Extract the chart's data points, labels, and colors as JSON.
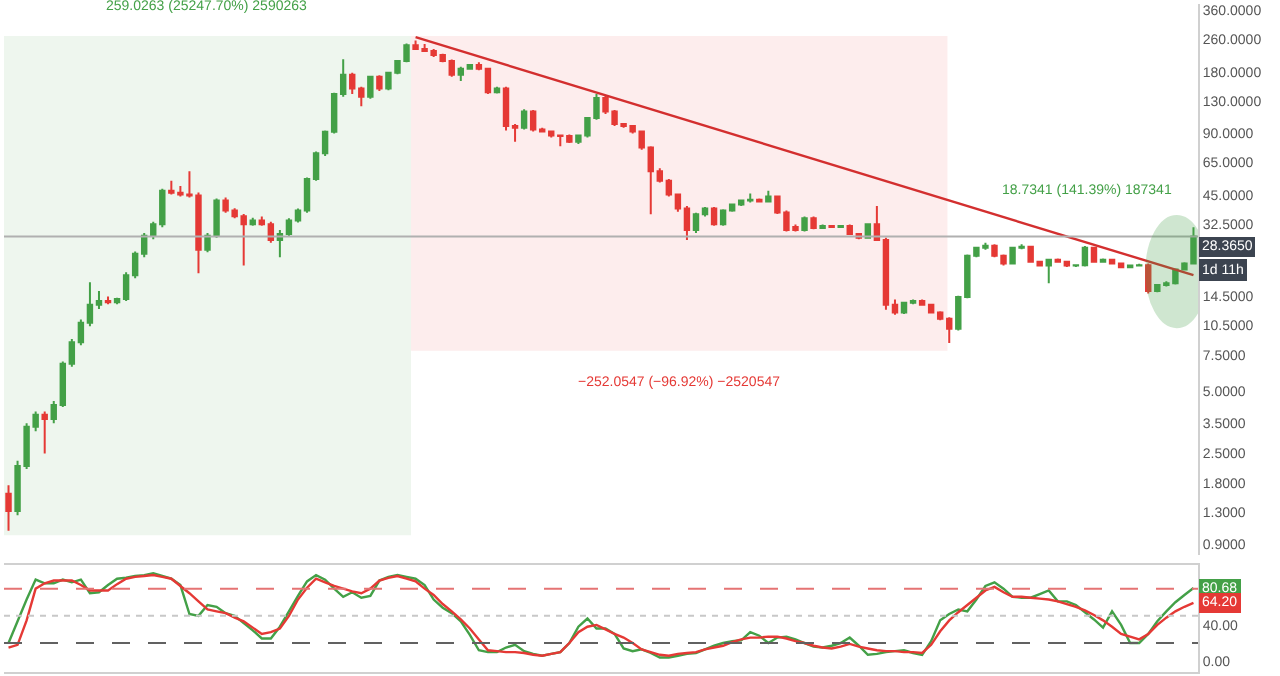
{
  "chart_data": [
    {
      "type": "candlestick",
      "categories": [
        null,
        null,
        null,
        null,
        null,
        null,
        null,
        null,
        null,
        null,
        null,
        null,
        null,
        null,
        null,
        null,
        null,
        null,
        null,
        null,
        null,
        null,
        null,
        null,
        null,
        null,
        null,
        null,
        null,
        null,
        null,
        null,
        null,
        null,
        null,
        null,
        null,
        null,
        null,
        null,
        null,
        null,
        null,
        null,
        null,
        null,
        null,
        null,
        null,
        null,
        null,
        null,
        null,
        null,
        null,
        null,
        null,
        null,
        null,
        null,
        null,
        null,
        null,
        null,
        null,
        null,
        null,
        null,
        null,
        null,
        null,
        null,
        null,
        null,
        null,
        null,
        null,
        null,
        null,
        null,
        null,
        null,
        null,
        null,
        null,
        null,
        null,
        null,
        null,
        null,
        null,
        null,
        null,
        null,
        null,
        null,
        null,
        null,
        null,
        null,
        null,
        null,
        null,
        null,
        null,
        null,
        null,
        null,
        null,
        null,
        null,
        null,
        null,
        null,
        null,
        null,
        null,
        null,
        null,
        null,
        null,
        null,
        null,
        null,
        null,
        null,
        null,
        null,
        null,
        null,
        null,
        null
      ],
      "ohlc": [
        [
          1.59,
          1.75,
          1.05,
          1.31
        ],
        [
          1.31,
          2.3,
          1.25,
          2.17
        ],
        [
          2.17,
          3.5,
          2.1,
          3.37
        ],
        [
          3.37,
          4.0,
          3.2,
          3.85
        ],
        [
          3.85,
          4.0,
          2.5,
          3.68
        ],
        [
          3.68,
          4.5,
          3.5,
          4.3
        ],
        [
          4.3,
          7.0,
          4.2,
          6.82
        ],
        [
          6.82,
          9.0,
          6.6,
          8.69
        ],
        [
          8.69,
          11.2,
          8.4,
          10.8
        ],
        [
          10.8,
          17,
          10.4,
          13.2
        ],
        [
          13.2,
          15.4,
          12.6,
          13.8
        ],
        [
          13.8,
          14.5,
          13.3,
          13.6
        ],
        [
          13.6,
          14.3,
          13.3,
          14.1
        ],
        [
          14.1,
          19,
          13.8,
          18.4
        ],
        [
          18.4,
          24,
          17.8,
          23.4
        ],
        [
          23.4,
          29.5,
          22.5,
          28.6
        ],
        [
          28.6,
          33.5,
          27.5,
          32.6
        ],
        [
          32.6,
          48.5,
          31.5,
          47.4
        ],
        [
          47.4,
          53,
          45.5,
          46.3
        ],
        [
          46.3,
          50,
          44.5,
          45.4
        ],
        [
          45.4,
          59,
          44,
          45
        ],
        [
          45,
          46.5,
          18.8,
          24.5
        ],
        [
          24.5,
          29.5,
          23.8,
          28.6
        ],
        [
          28.6,
          43.5,
          28,
          42.5
        ],
        [
          42.5,
          44,
          37,
          38
        ],
        [
          38,
          39,
          34.8,
          35.6
        ],
        [
          35.6,
          36.5,
          20.5,
          32.6
        ],
        [
          32.6,
          35,
          32,
          34
        ],
        [
          34,
          35.5,
          32,
          32.6
        ],
        [
          32.6,
          33.5,
          26.5,
          27.3
        ],
        [
          27.3,
          30.5,
          22.5,
          29.2
        ],
        [
          29.2,
          34.8,
          28.5,
          34
        ],
        [
          34,
          38.8,
          33.2,
          38
        ],
        [
          38,
          55,
          37,
          54.1
        ],
        [
          54.1,
          73.5,
          53,
          72.1
        ],
        [
          72.1,
          93,
          70,
          91.8
        ],
        [
          91.8,
          142,
          90,
          140
        ],
        [
          140,
          207,
          136,
          174
        ],
        [
          174,
          178,
          140,
          149
        ],
        [
          149,
          152,
          122,
          136
        ],
        [
          136,
          172,
          133,
          170
        ],
        [
          170,
          173,
          145,
          149
        ],
        [
          149,
          180,
          146,
          178
        ],
        [
          178,
          205,
          175,
          203
        ],
        [
          203,
          247,
          200,
          242
        ],
        [
          242,
          255,
          230,
          232
        ],
        [
          232,
          245,
          225,
          227
        ],
        [
          227,
          232,
          212,
          217
        ],
        [
          217,
          220,
          200,
          203
        ],
        [
          203,
          206,
          170,
          174
        ],
        [
          174,
          190,
          162,
          186
        ],
        [
          186,
          196,
          184,
          194
        ],
        [
          194,
          200,
          183,
          186
        ],
        [
          186,
          188,
          140,
          143
        ],
        [
          143,
          152,
          141,
          149
        ],
        [
          149,
          152,
          93,
          98
        ],
        [
          98,
          100,
          82,
          96
        ],
        [
          96,
          118,
          94,
          115
        ],
        [
          115,
          117,
          92,
          94
        ],
        [
          94,
          96,
          91,
          92
        ],
        [
          92,
          93,
          86,
          88
        ],
        [
          88,
          89,
          78,
          87.5
        ],
        [
          87.5,
          89,
          81,
          82
        ],
        [
          82,
          89,
          80,
          88
        ],
        [
          88,
          108,
          86,
          107
        ],
        [
          107,
          140,
          105,
          134
        ],
        [
          134,
          138,
          112,
          115
        ],
        [
          115,
          117,
          98,
          100
        ],
        [
          100,
          101,
          96,
          98
        ],
        [
          98,
          99,
          90,
          92
        ],
        [
          92,
          93,
          75,
          77
        ],
        [
          77,
          78,
          36.4,
          59
        ],
        [
          59,
          61,
          52,
          53
        ],
        [
          53,
          54,
          44.5,
          45.4
        ],
        [
          45.4,
          46,
          37.5,
          38.9
        ],
        [
          38.9,
          40,
          27.3,
          30.5
        ],
        [
          30.5,
          37,
          29.5,
          36.4
        ],
        [
          36.4,
          39.5,
          35.5,
          38.9
        ],
        [
          38.9,
          39.5,
          32,
          32.6
        ],
        [
          32.6,
          38.5,
          32,
          38
        ],
        [
          38,
          41,
          37.5,
          40.6
        ],
        [
          40.6,
          43,
          40,
          42.5
        ],
        [
          42.5,
          46,
          41.5,
          42.8
        ],
        [
          42.8,
          43.5,
          41.5,
          42
        ],
        [
          42,
          47.4,
          41.5,
          44.4
        ],
        [
          44.4,
          45,
          36.5,
          37.2
        ],
        [
          37.2,
          38,
          30,
          30.5
        ],
        [
          31.6,
          32.5,
          30,
          30.5
        ],
        [
          30.5,
          35.5,
          30,
          34.8
        ],
        [
          34.8,
          35.5,
          30.8,
          31.2
        ],
        [
          31.2,
          32.5,
          31,
          31.9
        ],
        [
          31.9,
          32.3,
          31.2,
          31.6
        ],
        [
          31.6,
          32.2,
          31.2,
          31.9
        ],
        [
          31.9,
          32.5,
          29,
          29.2
        ],
        [
          29.2,
          29.5,
          27.5,
          28
        ],
        [
          28,
          32.8,
          27.8,
          32.6
        ],
        [
          32.6,
          40,
          27,
          27.3
        ],
        [
          27.3,
          28,
          12.5,
          13.2
        ],
        [
          13.2,
          14,
          11.8,
          12.1
        ],
        [
          12.1,
          13.6,
          11.9,
          13.5
        ],
        [
          13.5,
          14,
          13.3,
          13.8
        ],
        [
          13.8,
          14,
          13.1,
          13.2
        ],
        [
          13.2,
          13.3,
          12,
          12.1
        ],
        [
          12.1,
          12.3,
          11.1,
          11.3
        ],
        [
          11.3,
          11.5,
          8.6,
          10.1
        ],
        [
          10.1,
          14.6,
          9.9,
          14.4
        ],
        [
          14.4,
          23.2,
          14.2,
          22.9
        ],
        [
          22.9,
          25.3,
          22.5,
          25
        ],
        [
          25,
          26.5,
          24.5,
          25.6
        ],
        [
          25.6,
          26,
          22.5,
          22.9
        ],
        [
          22.9,
          23.2,
          20.5,
          21
        ],
        [
          21,
          25.2,
          20.8,
          25
        ],
        [
          25,
          26,
          24.6,
          25.3
        ],
        [
          25.3,
          25.5,
          21.2,
          21.4
        ],
        [
          21.4,
          21.6,
          20.3,
          20.5
        ],
        [
          20.5,
          22,
          16.8,
          21.9
        ],
        [
          21.9,
          22.2,
          21.2,
          21.4
        ],
        [
          21.4,
          21.6,
          20.2,
          20.5
        ],
        [
          20.5,
          20.8,
          20.2,
          20.6
        ],
        [
          20.6,
          25.5,
          20.3,
          25
        ],
        [
          25,
          25.3,
          21.2,
          21.4
        ],
        [
          21.4,
          22.2,
          21.2,
          21.9
        ],
        [
          21.9,
          22,
          21,
          21
        ],
        [
          21,
          21.2,
          19.9,
          20.1
        ],
        [
          20.1,
          20.7,
          19.9,
          20.5
        ],
        [
          20.5,
          20.9,
          20.3,
          20.6
        ],
        [
          20.6,
          21,
          15,
          15.4
        ],
        [
          15.4,
          16.6,
          15.2,
          16.5
        ],
        [
          16.5,
          17.2,
          16.2,
          16.8
        ],
        [
          16.8,
          19.8,
          16.6,
          19.6
        ],
        [
          19.6,
          21.3,
          19.4,
          21
        ],
        [
          21,
          31.5,
          20.8,
          28.365
        ]
      ],
      "colors": [
        "#e53935",
        "#43a047",
        "#43a047",
        "#43a047",
        "#e53935",
        "#43a047",
        "#43a047",
        "#43a047",
        "#43a047",
        "#43a047",
        "#43a047",
        "#e53935",
        "#43a047",
        "#43a047",
        "#43a047",
        "#43a047",
        "#43a047",
        "#43a047",
        "#e53935",
        "#e53935",
        "#e53935",
        "#e53935",
        "#43a047",
        "#43a047",
        "#e53935",
        "#e53935",
        "#e53935",
        "#43a047",
        "#e53935",
        "#e53935",
        "#43a047",
        "#43a047",
        "#43a047",
        "#43a047",
        "#43a047",
        "#43a047",
        "#43a047",
        "#43a047",
        "#e53935",
        "#e53935",
        "#43a047",
        "#e53935",
        "#43a047",
        "#43a047",
        "#43a047",
        "#e53935",
        "#e53935",
        "#e53935",
        "#e53935",
        "#e53935",
        "#43a047",
        "#43a047",
        "#e53935",
        "#e53935",
        "#43a047",
        "#e53935",
        "#e53935",
        "#43a047",
        "#e53935",
        "#e53935",
        "#e53935",
        "#e53935",
        "#e53935",
        "#43a047",
        "#43a047",
        "#43a047",
        "#e53935",
        "#e53935",
        "#e53935",
        "#e53935",
        "#e53935",
        "#e53935",
        "#e53935",
        "#e53935",
        "#e53935",
        "#e53935",
        "#43a047",
        "#43a047",
        "#e53935",
        "#43a047",
        "#43a047",
        "#43a047",
        "#43a047",
        "#e53935",
        "#43a047",
        "#e53935",
        "#e53935",
        "#e53935",
        "#43a047",
        "#e53935",
        "#43a047",
        "#e53935",
        "#43a047",
        "#e53935",
        "#e53935",
        "#43a047",
        "#e53935",
        "#e53935",
        "#e53935",
        "#43a047",
        "#43a047",
        "#e53935",
        "#e53935",
        "#e53935",
        "#e53935",
        "#43a047",
        "#43a047",
        "#43a047",
        "#43a047",
        "#e53935",
        "#e53935",
        "#43a047",
        "#43a047",
        "#e53935",
        "#e53935",
        "#43a047",
        "#e53935",
        "#e53935",
        "#43a047",
        "#43a047",
        "#e53935",
        "#43a047",
        "#e53935",
        "#e53935",
        "#43a047",
        "#43a047",
        "#e53935",
        "#43a047",
        "#43a047",
        "#43a047",
        "#43a047",
        "#43a047"
      ],
      "series": [
        {
          "type": "line",
          "color": "#d32f2f",
          "values": [
            null,
            null,
            null,
            null,
            null,
            null,
            null,
            null,
            null,
            null,
            null,
            null,
            null,
            null,
            null,
            null,
            null,
            null,
            null,
            null,
            null,
            null,
            null,
            null,
            null,
            null,
            null,
            null,
            null,
            null,
            null,
            null,
            null,
            null,
            null,
            null,
            null,
            null,
            null,
            null,
            null,
            null,
            null,
            null,
            null,
            265,
            null,
            null,
            null,
            null,
            null,
            null,
            null,
            null,
            null,
            null,
            null,
            null,
            null,
            null,
            null,
            null,
            null,
            null,
            null,
            null,
            null,
            null,
            null,
            null,
            null,
            null,
            null,
            null,
            null,
            null,
            null,
            null,
            null,
            null,
            null,
            null,
            null,
            null,
            null,
            null,
            null,
            null,
            null,
            null,
            null,
            null,
            null,
            null,
            null,
            null,
            null,
            null,
            null,
            null,
            null,
            null,
            null,
            null,
            null,
            null,
            null,
            null,
            null,
            null,
            null,
            null,
            null,
            null,
            null,
            null,
            null,
            null,
            null,
            null,
            null,
            null,
            null,
            null,
            null,
            null,
            null,
            null,
            null,
            null,
            null,
            18.4
          ]
        }
      ],
      "ylim": [
        0.8,
        384
      ],
      "yticks": [
        {
          "value": 360,
          "label": "360.0000"
        },
        {
          "value": 260,
          "label": "260.0000"
        },
        {
          "value": 180,
          "label": "180.0000"
        },
        {
          "value": 130,
          "label": "130.0000"
        },
        {
          "value": 90,
          "label": "90.0000"
        },
        {
          "value": 65,
          "label": "65.0000"
        },
        {
          "value": 45,
          "label": "45.0000"
        },
        {
          "value": 32.5,
          "label": "32.5000"
        },
        {
          "value": 14.5,
          "label": "14.5000"
        },
        {
          "value": 10.5,
          "label": "10.5000"
        },
        {
          "value": 7.5,
          "label": "7.5000"
        },
        {
          "value": 5,
          "label": "5.0000"
        },
        {
          "value": 3.5,
          "label": "3.5000"
        },
        {
          "value": 2.5,
          "label": "2.5000"
        },
        {
          "value": 1.8,
          "label": "1.8000"
        },
        {
          "value": 1.3,
          "label": "1.3000"
        },
        {
          "value": 0.9,
          "label": "0.9000"
        }
      ],
      "log": "y",
      "grid": false,
      "tick_labels": "y",
      "ref_lines": [
        {
          "axis": "y",
          "value": 28.365,
          "label": "28.3650",
          "color": "#b0b0b0"
        }
      ],
      "annotations": [
        "259.0263 (25247.70%) 2590263",
        "−252.0547 (−96.92%) −2520547",
        "18.7341 (141.39%) 187341",
        "1d 11h"
      ]
    },
    {
      "type": "line",
      "categories": [
        null,
        null,
        null,
        null,
        null,
        null,
        null,
        null,
        null,
        null,
        null,
        null,
        null,
        null,
        null,
        null,
        null,
        null,
        null,
        null,
        null,
        null,
        null,
        null,
        null,
        null,
        null,
        null,
        null,
        null,
        null,
        null,
        null,
        null,
        null,
        null,
        null,
        null,
        null,
        null,
        null,
        null,
        null,
        null,
        null,
        null,
        null,
        null,
        null,
        null,
        null,
        null,
        null,
        null,
        null,
        null,
        null,
        null,
        null,
        null,
        null,
        null,
        null,
        null,
        null,
        null,
        null,
        null,
        null,
        null,
        null,
        null,
        null,
        null,
        null,
        null,
        null,
        null,
        null,
        null,
        null,
        null,
        null,
        null,
        null,
        null,
        null,
        null,
        null,
        null,
        null,
        null,
        null,
        null,
        null,
        null,
        null,
        null,
        null,
        null,
        null,
        null,
        null,
        null,
        null,
        null,
        null,
        null,
        null,
        null,
        null,
        null,
        null,
        null,
        null,
        null,
        null,
        null,
        null,
        null,
        null,
        null,
        null,
        null,
        null,
        null,
        null,
        null,
        null,
        null,
        null,
        null
      ],
      "series": [
        {
          "color": "#43a047",
          "values": [
            20,
            44,
            68,
            90,
            86,
            86,
            90,
            87,
            90,
            75,
            76,
            84,
            91,
            92,
            94,
            95,
            97,
            94,
            91,
            84,
            52,
            50,
            62,
            60,
            53,
            50,
            42,
            34,
            25,
            25,
            38,
            55,
            72,
            88,
            95,
            90,
            80,
            71,
            76,
            70,
            72,
            89,
            93,
            95,
            93,
            91,
            84,
            68,
            59,
            53,
            44,
            29,
            12,
            10,
            10,
            15,
            18,
            11,
            8,
            6,
            8,
            10,
            20,
            38,
            47,
            36,
            36,
            30,
            14,
            11,
            13,
            9,
            4,
            4,
            6,
            8,
            9,
            13,
            17,
            20,
            22,
            23,
            32,
            28,
            20,
            26,
            27,
            24,
            20,
            16,
            15,
            17,
            20,
            26,
            17,
            7,
            8,
            10,
            11,
            12,
            9,
            7,
            22,
            45,
            52,
            57,
            55,
            68,
            83,
            87,
            80,
            71,
            70,
            70,
            74,
            78,
            66,
            66,
            62,
            54,
            46,
            37,
            55,
            40,
            20,
            20,
            30,
            44,
            55,
            65,
            73,
            80.68
          ]
        },
        {
          "color": "#e53935",
          "values": [
            15,
            18,
            45,
            80,
            86,
            89,
            89,
            89,
            84,
            78,
            78,
            78,
            85,
            91,
            93,
            94,
            95,
            93,
            91,
            83,
            75,
            66,
            57,
            55,
            53,
            48,
            44,
            37,
            30,
            32,
            36,
            50,
            68,
            81,
            91,
            87,
            83,
            80,
            77,
            75,
            80,
            89,
            92,
            94,
            91,
            88,
            80,
            73,
            63,
            55,
            46,
            36,
            24,
            12,
            11,
            10,
            10,
            9,
            7,
            6,
            8,
            10,
            20,
            32,
            38,
            40,
            35,
            30,
            26,
            20,
            13,
            10,
            7,
            6,
            8,
            9,
            10,
            13,
            15,
            17,
            21,
            24,
            26,
            26,
            27,
            27,
            25,
            22,
            20,
            17,
            15,
            14,
            16,
            19,
            16,
            14,
            12,
            11,
            11,
            10,
            10,
            9,
            18,
            33,
            45,
            54,
            62,
            70,
            78,
            82,
            76,
            71,
            71,
            70,
            69,
            68,
            66,
            63,
            60,
            56,
            51,
            45,
            38,
            30,
            27,
            24,
            30,
            40,
            48,
            55,
            60,
            64.2
          ]
        }
      ],
      "ylim": [
        -12,
        106
      ],
      "yticks": [
        {
          "value": 0,
          "label": "0.00"
        },
        {
          "value": 40,
          "label": "40.00"
        }
      ],
      "grid": false,
      "tick_labels": "y",
      "ref_lines": [
        {
          "axis": "y",
          "value": 80,
          "color": "#e57373",
          "line_style": "dashed"
        },
        {
          "axis": "y",
          "value": 50,
          "color": "#c8c8c8",
          "line_style": "dotted"
        },
        {
          "axis": "y",
          "value": 20,
          "color": "#616161",
          "line_style": "dashed"
        }
      ],
      "annotations": [
        "80.68",
        "64.20"
      ]
    }
  ]
}
